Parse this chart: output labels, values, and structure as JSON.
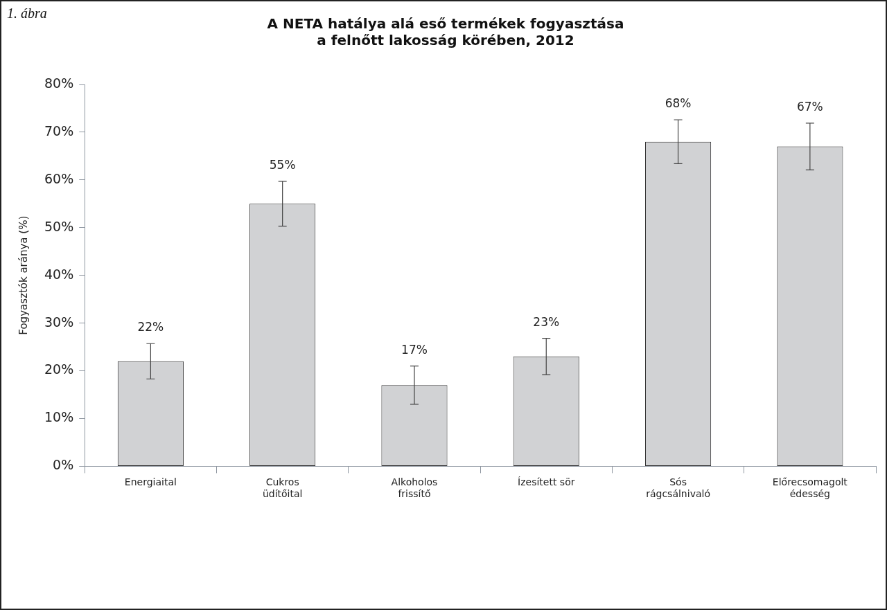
{
  "chart_data": {
    "type": "bar",
    "title": "A NETA hatálya alá eső termékek fogyasztása\na felnőtt lakosság körében, 2012",
    "ylabel": "Fogyasztók aránya (%)",
    "annotations": [
      "1. ábra"
    ],
    "categories": [
      "Energiaital",
      "Cukros\nüdítőital",
      "Alkoholos\nfrissítő",
      "Ízesített sör",
      "Sós\nrágcsálnivaló",
      "Előrecsomagolt\nédesség"
    ],
    "values": [
      22,
      55,
      17,
      23,
      68,
      67
    ],
    "value_labels": [
      "22%",
      "55%",
      "17%",
      "23%",
      "68%",
      "67%"
    ],
    "errors": [
      3.7,
      4.7,
      4.0,
      3.8,
      4.6,
      4.9
    ],
    "color": "#d1d2d4",
    "ylim": [
      0,
      80
    ],
    "yticks": [
      {
        "value": 0,
        "label": "0%"
      },
      {
        "value": 10,
        "label": "10%"
      },
      {
        "value": 20,
        "label": "20%"
      },
      {
        "value": 30,
        "label": "30%"
      },
      {
        "value": 40,
        "label": "40%"
      },
      {
        "value": 50,
        "label": "50%"
      },
      {
        "value": 60,
        "label": "60%"
      },
      {
        "value": 70,
        "label": "70%"
      },
      {
        "value": 80,
        "label": "80%"
      }
    ],
    "grid": false,
    "legend": false
  }
}
